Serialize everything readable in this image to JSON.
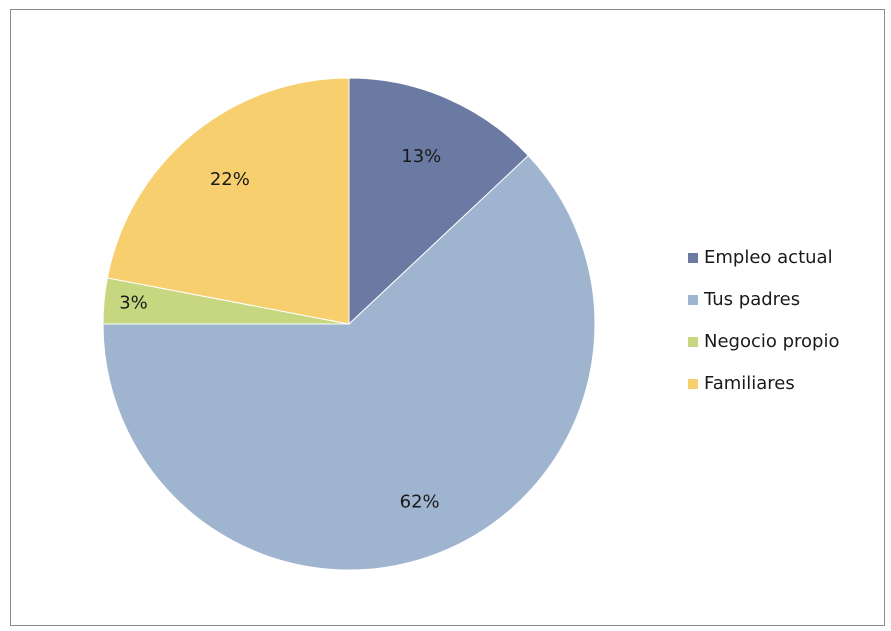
{
  "chart_data": {
    "type": "pie",
    "categories": [
      "Empleo actual",
      "Tus padres",
      "Negocio propio",
      "Familiares"
    ],
    "values": [
      13,
      62,
      3,
      22
    ],
    "labels": [
      "13%",
      "62%",
      "3%",
      "22%"
    ],
    "colors": [
      "#6b7aa3",
      "#9fb4cf",
      "#c6d77f",
      "#f8cf6e"
    ],
    "start_angle": "12 o'clock",
    "direction": "clockwise",
    "legend_position": "right"
  }
}
